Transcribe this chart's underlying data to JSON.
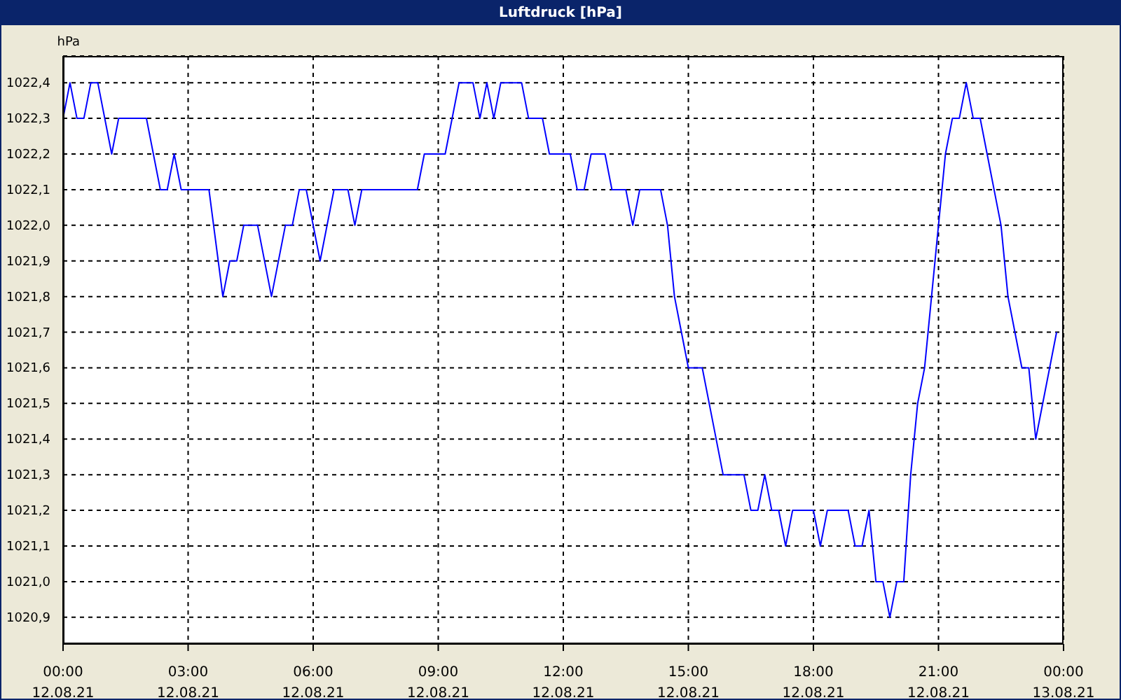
{
  "chart_data": {
    "type": "line",
    "title": "Luftdruck [hPa]",
    "ylabel": "hPa",
    "x": [
      "--08-12T00:00",
      "--08-12T00:10",
      "--08-12T00:20",
      "--08-12T00:30",
      "--08-12T00:40",
      "--08-12T00:50",
      "--08-12T01:10",
      "--08-12T01:20",
      "--08-12T02:00",
      "--08-12T02:20",
      "--08-12T02:30",
      "--08-12T02:40",
      "--08-12T02:50",
      "--08-12T03:30",
      "--08-12T03:50",
      "--08-12T04:00",
      "--08-12T04:10",
      "--08-12T04:20",
      "--08-12T04:40",
      "--08-12T05:00",
      "--08-12T05:20",
      "--08-12T05:30",
      "--08-12T05:40",
      "--08-12T05:50",
      "--08-12T06:10",
      "--08-12T06:30",
      "--08-12T06:50",
      "--08-12T07:00",
      "--08-12T07:10",
      "--08-12T08:30",
      "--08-12T08:40",
      "--08-12T09:10",
      "--08-12T09:30",
      "--08-12T09:50",
      "--08-12T10:00",
      "--08-12T10:10",
      "--08-12T10:20",
      "--08-12T10:30",
      "--08-12T11:00",
      "--08-12T11:10",
      "--08-12T11:30",
      "--08-12T11:40",
      "--08-12T12:10",
      "--08-12T12:20",
      "--08-12T12:30",
      "--08-12T12:40",
      "--08-12T13:00",
      "--08-12T13:10",
      "--08-12T13:30",
      "--08-12T13:40",
      "--08-12T13:50",
      "--08-12T14:20",
      "--08-12T14:30",
      "--08-12T14:40",
      "--08-12T14:50",
      "--08-12T15:00",
      "--08-12T15:20",
      "--08-12T15:50",
      "--08-12T16:20",
      "--08-12T16:30",
      "--08-12T16:40",
      "--08-12T16:50",
      "--08-12T17:00",
      "--08-12T17:10",
      "--08-12T17:20",
      "--08-12T17:30",
      "--08-12T18:00",
      "--08-12T18:10",
      "--08-12T18:20",
      "--08-12T18:50",
      "--08-12T19:00",
      "--08-12T19:10",
      "--08-12T19:20",
      "--08-12T19:30",
      "--08-12T19:40",
      "--08-12T19:50",
      "--08-12T20:00",
      "--08-12T20:10",
      "--08-12T20:20",
      "--08-12T20:30",
      "--08-12T20:40",
      "--08-12T20:50",
      "--08-12T21:00",
      "--08-12T21:10",
      "--08-12T21:20",
      "--08-12T21:30",
      "--08-12T21:40",
      "--08-12T21:50",
      "--08-12T22:00",
      "--08-12T22:10",
      "--08-12T22:20",
      "--08-12T22:30",
      "--08-12T22:40",
      "--08-12T22:50",
      "--08-12T23:00",
      "--08-12T23:10",
      "--08-12T23:20",
      "--08-12T23:50"
    ],
    "values": [
      1022.3,
      1022.4,
      1022.3,
      1022.3,
      1022.4,
      1022.4,
      1022.2,
      1022.3,
      1022.3,
      1022.1,
      1022.1,
      1022.2,
      1022.1,
      1022.1,
      1021.8,
      1021.9,
      1021.9,
      1022.0,
      1022.0,
      1021.8,
      1022.0,
      1022.0,
      1022.1,
      1022.1,
      1021.9,
      1022.1,
      1022.1,
      1022.0,
      1022.1,
      1022.1,
      1022.2,
      1022.2,
      1022.4,
      1022.4,
      1022.3,
      1022.4,
      1022.3,
      1022.4,
      1022.4,
      1022.3,
      1022.3,
      1022.2,
      1022.2,
      1022.1,
      1022.1,
      1022.2,
      1022.2,
      1022.1,
      1022.1,
      1022.0,
      1022.1,
      1022.1,
      1022.0,
      1021.8,
      1021.7,
      1021.6,
      1021.6,
      1021.3,
      1021.3,
      1021.2,
      1021.2,
      1021.3,
      1021.2,
      1021.2,
      1021.1,
      1021.2,
      1021.2,
      1021.1,
      1021.2,
      1021.2,
      1021.1,
      1021.1,
      1021.2,
      1021.0,
      1021.0,
      1020.9,
      1021.0,
      1021.0,
      1021.3,
      1021.5,
      1021.6,
      1021.8,
      1022.0,
      1022.2,
      1022.3,
      1022.3,
      1022.4,
      1022.3,
      1022.3,
      1022.2,
      1022.1,
      1022.0,
      1021.8,
      1021.7,
      1021.6,
      1021.6,
      1021.4,
      1021.7
    ],
    "color": "#0000ff",
    "xlim": [
      "--08-12T00:00",
      "--08-13T00:00"
    ],
    "xticks": [
      {
        "value": "--08-12T00:00",
        "label": "00:00\n12.08.21"
      },
      {
        "value": "--08-12T03:00",
        "label": "03:00\n12.08.21"
      },
      {
        "value": "--08-12T06:00",
        "label": "06:00\n12.08.21"
      },
      {
        "value": "--08-12T09:00",
        "label": "09:00\n12.08.21"
      },
      {
        "value": "--08-12T12:00",
        "label": "12:00\n12.08.21"
      },
      {
        "value": "--08-12T15:00",
        "label": "15:00\n12.08.21"
      },
      {
        "value": "--08-12T18:00",
        "label": "18:00\n12.08.21"
      },
      {
        "value": "--08-12T21:00",
        "label": "21:00\n12.08.21"
      },
      {
        "value": "--08-13T00:00",
        "label": "00:00\n13.08.21"
      }
    ],
    "ylim": [
      1020.825,
      1022.475
    ],
    "yticks": [
      {
        "value": 1020.9,
        "label": "1020,9"
      },
      {
        "value": 1021.0,
        "label": "1021,0"
      },
      {
        "value": 1021.1,
        "label": "1021,1"
      },
      {
        "value": 1021.2,
        "label": "1021,2"
      },
      {
        "value": 1021.3,
        "label": "1021,3"
      },
      {
        "value": 1021.4,
        "label": "1021,4"
      },
      {
        "value": 1021.5,
        "label": "1021,5"
      },
      {
        "value": 1021.6,
        "label": "1021,6"
      },
      {
        "value": 1021.7,
        "label": "1021,7"
      },
      {
        "value": 1021.8,
        "label": "1021,8"
      },
      {
        "value": 1021.9,
        "label": "1021,9"
      },
      {
        "value": 1022.0,
        "label": "1022,0"
      },
      {
        "value": 1022.1,
        "label": "1022,1"
      },
      {
        "value": 1022.2,
        "label": "1022,2"
      },
      {
        "value": 1022.3,
        "label": "1022,3"
      },
      {
        "value": 1022.4,
        "label": "1022,4"
      }
    ],
    "grid": true,
    "marker": "none",
    "line_style": "solid"
  }
}
